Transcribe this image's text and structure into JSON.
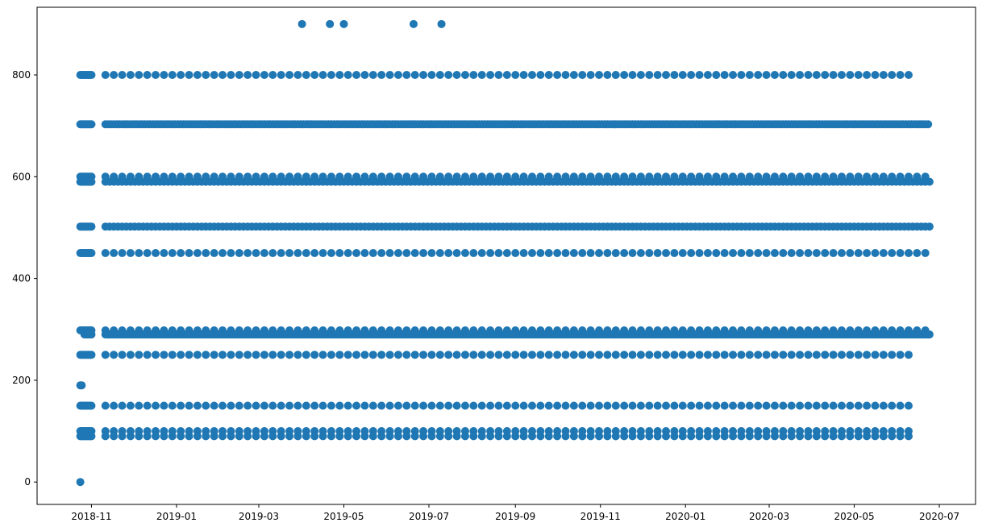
{
  "chart_data": {
    "type": "scatter",
    "title": "",
    "xlabel": "",
    "ylabel": "",
    "grid": false,
    "legend": "none",
    "marker_color": "#1f77b4",
    "xlim": [
      "2018-09-23",
      "2020-07-27"
    ],
    "ylim": [
      -44,
      933
    ],
    "x_ticks": [
      {
        "date": "2018-11-01",
        "label": "2018-11"
      },
      {
        "date": "2019-01-01",
        "label": "2019-01"
      },
      {
        "date": "2019-03-01",
        "label": "2019-03"
      },
      {
        "date": "2019-05-01",
        "label": "2019-05"
      },
      {
        "date": "2019-07-01",
        "label": "2019-07"
      },
      {
        "date": "2019-09-01",
        "label": "2019-09"
      },
      {
        "date": "2019-11-01",
        "label": "2019-11"
      },
      {
        "date": "2020-01-01",
        "label": "2020-01"
      },
      {
        "date": "2020-03-01",
        "label": "2020-03"
      },
      {
        "date": "2020-05-01",
        "label": "2020-05"
      },
      {
        "date": "2020-07-01",
        "label": "2020-07"
      }
    ],
    "y_ticks": [
      {
        "value": 0,
        "label": "0"
      },
      {
        "value": 200,
        "label": "200"
      },
      {
        "value": 400,
        "label": "400"
      },
      {
        "value": 600,
        "label": "600"
      },
      {
        "value": 800,
        "label": "800"
      }
    ],
    "series": [
      {
        "label": "800 level",
        "y": 800,
        "x_first": "2018-10-24",
        "x_last": "2018-11-01",
        "x_start": "2018-11-11",
        "x_end": "2020-06-14",
        "step_days": 6
      },
      {
        "label": "700 level",
        "y": 703,
        "x_first": "2018-10-24",
        "x_last": "2018-11-01",
        "x_start": "2018-11-11",
        "x_end": "2020-06-24",
        "step_days": 2
      },
      {
        "label": "600 level",
        "y": 600,
        "x_first": "2018-10-24",
        "x_last": "2018-11-01",
        "x_start": "2018-11-11",
        "x_end": "2020-06-24",
        "step_days": 6
      },
      {
        "label": "590 level",
        "y": 590,
        "x_first": "2018-10-24",
        "x_last": "2018-11-01",
        "x_start": "2018-11-11",
        "x_end": "2020-06-24",
        "step_days": 3
      },
      {
        "label": "500 level",
        "y": 502,
        "x_first": "2018-10-24",
        "x_last": "2018-11-01",
        "x_start": "2018-11-11",
        "x_end": "2020-06-24",
        "step_days": 3
      },
      {
        "label": "450 level",
        "y": 450,
        "x_first": "2018-10-24",
        "x_last": "2018-11-01",
        "x_start": "2018-11-11",
        "x_end": "2020-06-24",
        "step_days": 6
      },
      {
        "label": "300 level",
        "y": 298,
        "x_first": "2018-10-24",
        "x_last": "2018-11-01",
        "x_start": "2018-11-11",
        "x_end": "2020-06-24",
        "step_days": 6
      },
      {
        "label": "290 level",
        "y": 290,
        "x_first": "2018-10-27",
        "x_last": "2018-11-01",
        "x_start": "2018-11-11",
        "x_end": "2020-06-24",
        "step_days": 1
      },
      {
        "label": "250 level",
        "y": 250,
        "x_first": "2018-10-24",
        "x_last": "2018-11-01",
        "x_start": "2018-11-11",
        "x_end": "2020-06-14",
        "step_days": 6
      },
      {
        "label": "150 level",
        "y": 150,
        "x_first": "2018-10-24",
        "x_last": "2018-11-01",
        "x_start": "2018-11-11",
        "x_end": "2020-06-14",
        "step_days": 6
      },
      {
        "label": "100 level",
        "y": 100,
        "x_first": "2018-10-24",
        "x_last": "2018-11-01",
        "x_start": "2018-11-11",
        "x_end": "2020-06-14",
        "step_days": 6
      },
      {
        "label": "90 level",
        "y": 90,
        "x_first": "2018-10-24",
        "x_last": "2018-11-01",
        "x_start": "2018-11-11",
        "x_end": "2020-06-14",
        "step_days": 6
      }
    ],
    "extra_points": [
      {
        "x": "2019-04-01",
        "y": 900
      },
      {
        "x": "2019-04-21",
        "y": 900
      },
      {
        "x": "2019-05-01",
        "y": 900
      },
      {
        "x": "2019-06-20",
        "y": 900
      },
      {
        "x": "2019-07-10",
        "y": 900
      },
      {
        "x": "2018-10-24",
        "y": 190
      },
      {
        "x": "2018-10-25",
        "y": 190
      },
      {
        "x": "2018-10-24",
        "y": 0
      }
    ]
  }
}
